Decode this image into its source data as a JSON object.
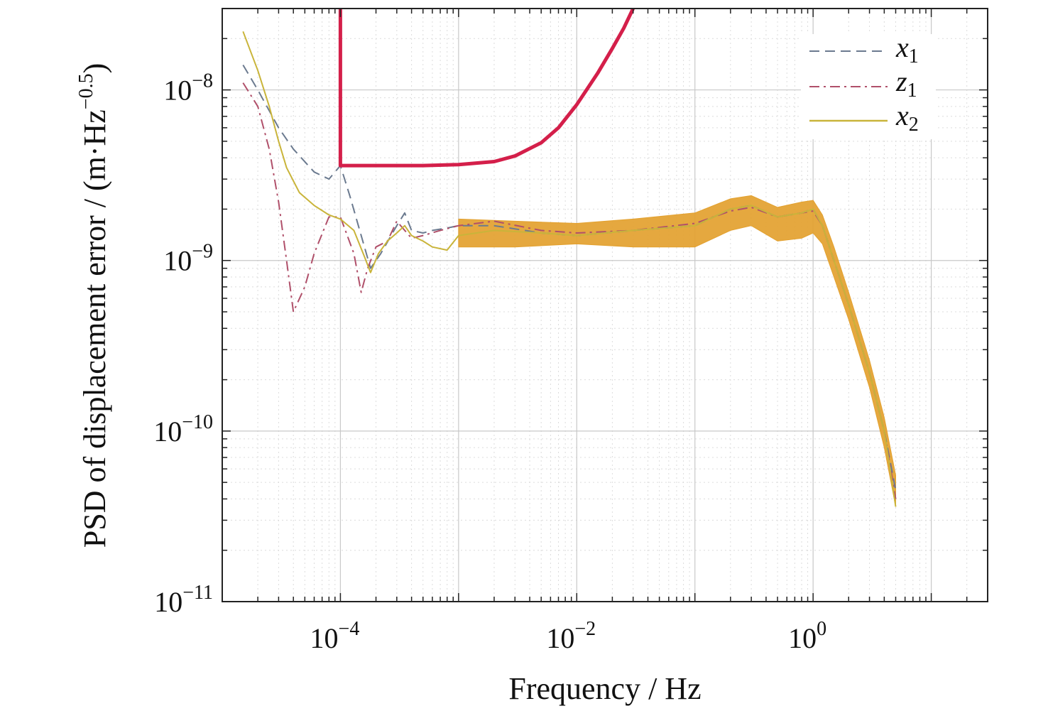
{
  "chart_data": {
    "type": "line",
    "x_scale": "log",
    "y_scale": "log",
    "xlim": [
      1e-05,
      30
    ],
    "ylim": [
      1e-11,
      3e-08
    ],
    "grid": true,
    "legend_position": "top-right",
    "xlabel": "Frequency / Hz",
    "ylabel": {
      "main": "PSD of displacement error / (m·Hz",
      "exp": "−0.5",
      "close": ")"
    },
    "x_ticks": [
      {
        "value": 0.0001,
        "base": "10",
        "exp": "−4"
      },
      {
        "value": 0.01,
        "base": "10",
        "exp": "−2"
      },
      {
        "value": 1,
        "base": "10",
        "exp": "0"
      }
    ],
    "y_ticks": [
      {
        "value": 1e-08,
        "base": "10",
        "exp": "−8"
      },
      {
        "value": 1e-09,
        "base": "10",
        "exp": "−9"
      },
      {
        "value": 1e-10,
        "base": "10",
        "exp": "−10"
      },
      {
        "value": 1e-11,
        "base": "10",
        "exp": "−11"
      }
    ],
    "legend": [
      {
        "var": "x",
        "sub": "1",
        "style": "dashed"
      },
      {
        "var": "z",
        "sub": "1",
        "style": "dashdot"
      },
      {
        "var": "x",
        "sub": "2",
        "style": "solid"
      }
    ],
    "series": [
      {
        "key": "x1",
        "color": "#6b7a8f",
        "dash": "14 8",
        "x": [
          1.5e-05,
          2e-05,
          3e-05,
          4e-05,
          6e-05,
          8e-05,
          0.0001,
          0.00012,
          0.00015,
          0.00018,
          0.00022,
          0.0003,
          0.00035,
          0.0004,
          0.0005,
          0.0006,
          0.0008,
          0.001,
          0.002,
          0.005,
          0.01,
          0.03,
          0.1,
          0.2,
          0.3,
          0.5,
          0.8,
          1.0,
          1.2,
          1.5,
          2,
          3,
          4,
          5
        ],
        "y": [
          1.4e-08,
          1e-08,
          6e-09,
          4.5e-09,
          3.3e-09,
          3e-09,
          3.6e-09,
          2.4e-09,
          1.4e-09,
          9e-10,
          1.1e-09,
          1.6e-09,
          1.9e-09,
          1.5e-09,
          1.45e-09,
          1.5e-09,
          1.55e-09,
          1.6e-09,
          1.6e-09,
          1.45e-09,
          1.4e-09,
          1.5e-09,
          1.6e-09,
          2e-09,
          2.1e-09,
          1.8e-09,
          1.9e-09,
          2e-09,
          1.6e-09,
          1e-09,
          5.5e-10,
          2.2e-10,
          1e-10,
          4.5e-11
        ]
      },
      {
        "key": "z1",
        "color": "#b0506a",
        "dash": "14 6 3 6",
        "x": [
          1.5e-05,
          2e-05,
          2.5e-05,
          3e-05,
          3.5e-05,
          4e-05,
          5e-05,
          6e-05,
          8e-05,
          0.0001,
          0.00013,
          0.00015,
          0.00017,
          0.0002,
          0.00025,
          0.0003,
          0.0004,
          0.0005,
          0.0007,
          0.001,
          0.002,
          0.005,
          0.01,
          0.03,
          0.1,
          0.2,
          0.3,
          0.5,
          0.8,
          1.0,
          1.2,
          1.5,
          2,
          3,
          4,
          5
        ],
        "y": [
          1.1e-08,
          8e-09,
          4.5e-09,
          2.2e-09,
          1e-09,
          5e-10,
          7e-10,
          1.1e-09,
          1.8e-09,
          1.8e-09,
          1.1e-09,
          6.5e-10,
          9e-10,
          1.2e-09,
          1.3e-09,
          1.7e-09,
          1.35e-09,
          1.4e-09,
          1.5e-09,
          1.6e-09,
          1.7e-09,
          1.5e-09,
          1.45e-09,
          1.5e-09,
          1.65e-09,
          1.95e-09,
          2.05e-09,
          1.8e-09,
          1.9e-09,
          1.95e-09,
          1.6e-09,
          1e-09,
          5.5e-10,
          2.2e-10,
          1e-10,
          4e-11
        ]
      },
      {
        "key": "x2",
        "color": "#c9b43a",
        "dash": "",
        "x": [
          1.5e-05,
          2e-05,
          2.5e-05,
          3e-05,
          3.5e-05,
          4.5e-05,
          6e-05,
          8e-05,
          0.0001,
          0.00013,
          0.00016,
          0.00018,
          0.00021,
          0.00025,
          0.0003,
          0.00035,
          0.0004,
          0.0005,
          0.0006,
          0.0008,
          0.001,
          0.002,
          0.005,
          0.01,
          0.03,
          0.1,
          0.2,
          0.3,
          0.5,
          0.8,
          1.0,
          1.2,
          1.5,
          2,
          3,
          4,
          5
        ],
        "y": [
          2.2e-08,
          1.3e-08,
          8e-09,
          5e-09,
          3.5e-09,
          2.5e-09,
          2.1e-09,
          1.85e-09,
          1.75e-09,
          1.5e-09,
          1.05e-09,
          8.5e-10,
          1.1e-09,
          1.3e-09,
          1.45e-09,
          1.6e-09,
          1.4e-09,
          1.3e-09,
          1.2e-09,
          1.15e-09,
          1.4e-09,
          1.5e-09,
          1.45e-09,
          1.4e-09,
          1.5e-09,
          1.6e-09,
          2e-09,
          2.1e-09,
          1.8e-09,
          1.9e-09,
          2e-09,
          1.6e-09,
          1e-09,
          5.5e-10,
          2.2e-10,
          1e-10,
          3.6e-11
        ]
      },
      {
        "key": "requirement",
        "color": "#d41f4a",
        "dash": "",
        "x": [
          0.0001,
          0.0001,
          0.0002,
          0.0005,
          0.001,
          0.002,
          0.003,
          0.005,
          0.007,
          0.01,
          0.015,
          0.02,
          0.025,
          0.03
        ],
        "y": [
          3e-08,
          3.6e-09,
          3.6e-09,
          3.6e-09,
          3.65e-09,
          3.8e-09,
          4.1e-09,
          4.9e-09,
          6e-09,
          8.2e-09,
          1.25e-08,
          1.75e-08,
          2.3e-08,
          3e-08
        ]
      }
    ],
    "band": {
      "color": "#e3a12f",
      "x": [
        0.001,
        0.003,
        0.01,
        0.03,
        0.1,
        0.2,
        0.3,
        0.5,
        0.8,
        1.0,
        1.2,
        1.5,
        2,
        3,
        4,
        5
      ],
      "upper": [
        1.75e-09,
        1.7e-09,
        1.65e-09,
        1.75e-09,
        1.9e-09,
        2.3e-09,
        2.4e-09,
        2.05e-09,
        2.2e-09,
        2.25e-09,
        1.85e-09,
        1.2e-09,
        6.5e-10,
        2.6e-10,
        1.2e-10,
        5.5e-11
      ],
      "lower": [
        1.2e-09,
        1.2e-09,
        1.25e-09,
        1.2e-09,
        1.2e-09,
        1.5e-09,
        1.6e-09,
        1.3e-09,
        1.35e-09,
        1.45e-09,
        1.25e-09,
        8e-10,
        4.5e-10,
        1.8e-10,
        8e-11,
        3.6e-11
      ]
    }
  }
}
